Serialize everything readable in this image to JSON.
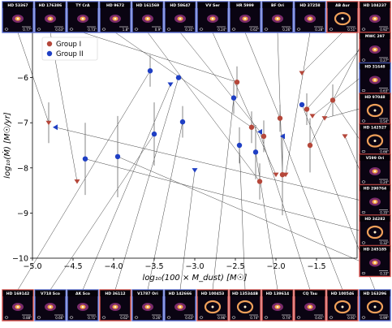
{
  "chart_data": {
    "type": "scatter",
    "xlabel": "log₁₀(100 × M_dust) [M☉]",
    "ylabel": "log₁₀(Ṁ) [M☉/yr]",
    "xlim": [
      -5.0,
      -1.0
    ],
    "ylim": [
      -10.0,
      -5.0
    ],
    "x_ticks": [
      -5.0,
      -4.5,
      -4.0,
      -3.5,
      -3.0,
      -2.5,
      -2.0,
      -1.5
    ],
    "x_tick_labels": [
      "−5.0",
      "−4.5",
      "−4.0",
      "−3.5",
      "−3.0",
      "−2.5",
      "−2.0",
      "−1.5"
    ],
    "y_ticks": [
      -6,
      -7,
      -8,
      -9,
      -10
    ],
    "y_tick_labels": [
      "−6",
      "−7",
      "−8",
      "−9",
      "−10"
    ],
    "legend_placement": "upper-left",
    "series": [
      {
        "name": "Group I",
        "color": "#b5473a",
        "points": [
          {
            "x": -4.8,
            "y": -7.0,
            "yerr": 0.45,
            "marker": "triangle-down"
          },
          {
            "x": -4.45,
            "y": -8.3,
            "yerr": 0,
            "marker": "triangle-down"
          },
          {
            "x": -2.48,
            "y": -6.1,
            "yerr": 0.35,
            "marker": "circle"
          },
          {
            "x": -2.3,
            "y": -7.1,
            "yerr": 0.35,
            "marker": "circle"
          },
          {
            "x": -2.2,
            "y": -8.3,
            "yerr": 0.4,
            "marker": "circle"
          },
          {
            "x": -2.15,
            "y": -7.3,
            "yerr": 0.35,
            "marker": "circle"
          },
          {
            "x": -2.0,
            "y": -8.15,
            "yerr": 0,
            "marker": "triangle-down"
          },
          {
            "x": -1.95,
            "y": -6.9,
            "yerr": 0.3,
            "marker": "circle"
          },
          {
            "x": -1.92,
            "y": -8.15,
            "yerr": 0.9,
            "marker": "circle"
          },
          {
            "x": -1.88,
            "y": -8.15,
            "yerr": 0,
            "marker": "triangle-down"
          },
          {
            "x": -1.68,
            "y": -5.9,
            "yerr": 0,
            "marker": "triangle-down"
          },
          {
            "x": -1.62,
            "y": -6.7,
            "yerr": 0.35,
            "marker": "circle"
          },
          {
            "x": -1.58,
            "y": -7.5,
            "yerr": 0.6,
            "marker": "circle"
          },
          {
            "x": -1.55,
            "y": -6.85,
            "yerr": 0,
            "marker": "triangle-down"
          },
          {
            "x": -1.4,
            "y": -6.9,
            "yerr": 0,
            "marker": "triangle-down"
          },
          {
            "x": -1.3,
            "y": -6.5,
            "yerr": 0.35,
            "marker": "circle"
          },
          {
            "x": -1.15,
            "y": -7.3,
            "yerr": 0,
            "marker": "triangle-down"
          }
        ]
      },
      {
        "name": "Group II",
        "color": "#1f3fc4",
        "points": [
          {
            "x": -4.72,
            "y": -7.1,
            "yerr": 0,
            "marker": "triangle-left"
          },
          {
            "x": -4.35,
            "y": -7.8,
            "yerr": 0.8,
            "marker": "circle"
          },
          {
            "x": -3.95,
            "y": -7.75,
            "yerr": 0.9,
            "marker": "circle"
          },
          {
            "x": -3.55,
            "y": -5.85,
            "yerr": 0.35,
            "marker": "circle"
          },
          {
            "x": -3.5,
            "y": -7.25,
            "yerr": 0.7,
            "marker": "circle"
          },
          {
            "x": -3.3,
            "y": -6.15,
            "yerr": 0,
            "marker": "triangle-down"
          },
          {
            "x": -3.2,
            "y": -6.0,
            "yerr": 0,
            "marker": "circle"
          },
          {
            "x": -3.15,
            "y": -6.98,
            "yerr": 0.35,
            "marker": "circle"
          },
          {
            "x": -3.0,
            "y": -8.05,
            "yerr": 0,
            "marker": "triangle-down"
          },
          {
            "x": -2.52,
            "y": -6.45,
            "yerr": 0.35,
            "marker": "circle"
          },
          {
            "x": -2.45,
            "y": -7.5,
            "yerr": 0.4,
            "marker": "circle"
          },
          {
            "x": -2.25,
            "y": -7.65,
            "yerr": 0.6,
            "marker": "circle"
          },
          {
            "x": -2.2,
            "y": -7.2,
            "yerr": 0,
            "marker": "triangle-left"
          },
          {
            "x": -1.92,
            "y": -7.3,
            "yerr": 0,
            "marker": "triangle-left"
          },
          {
            "x": -1.68,
            "y": -6.6,
            "yerr": 0,
            "marker": "circle"
          }
        ]
      }
    ],
    "thumbnails_top": [
      {
        "name": "HD 53367",
        "scale": "0.77\"",
        "border": "#5b6fd6",
        "anchor": 1
      },
      {
        "name": "HD 176386",
        "scale": "0.63\"",
        "border": "#5b6fd6",
        "anchor": 0
      },
      {
        "name": "TY CrA",
        "scale": "0.73\"",
        "border": "#5b6fd6",
        "anchor": 6
      },
      {
        "name": "HD 9672",
        "scale": "1.8\"",
        "border": "#5b6fd6",
        "anchor": 4
      },
      {
        "name": "HD 161569",
        "scale": "0.9\"",
        "border": "#5b6fd6",
        "anchor": 6
      },
      {
        "name": "HD 58647",
        "scale": "0.31\"",
        "border": "#5b6fd6",
        "anchor": 5
      },
      {
        "name": "VV Ser",
        "scale": "0.24\"",
        "border": "#5b6fd6",
        "anchor": 9
      },
      {
        "name": "HR 5999",
        "scale": "0.62\"",
        "border": "#5b6fd6",
        "anchor": 2
      },
      {
        "name": "BF Ori",
        "scale": "0.26\"",
        "border": "#5b6fd6",
        "anchor": 11
      },
      {
        "name": "HD 37258",
        "scale": "0.28\"",
        "border": "#5b6fd6",
        "anchor": 14
      },
      {
        "name": "AB Aur",
        "scale": "0.51\"",
        "border": "#d9534f",
        "anchor": 10
      },
      {
        "name": "HD 104237",
        "scale": "0.92\"",
        "border": "#d9534f",
        "anchor": 11
      }
    ],
    "thumbnails_right": [
      {
        "name": "MWC 297",
        "scale": "0.27\"",
        "border": "#d9534f"
      },
      {
        "name": "HD 31648",
        "scale": "0.63\"",
        "border": "#5b6fd6"
      },
      {
        "name": "HD 97048",
        "scale": "0.54\"",
        "border": "#d9534f"
      },
      {
        "name": "HD 142527",
        "scale": "0.66\"",
        "border": "#d9534f"
      },
      {
        "name": "V599 Ori",
        "scale": "0.24\"",
        "border": "#d9534f"
      },
      {
        "name": "HD 290764",
        "scale": "0.35\"",
        "border": "#d9534f"
      },
      {
        "name": "HD 34282",
        "scale": "0.32\"",
        "border": "#d9534f"
      },
      {
        "name": "HD 245185",
        "scale": "0.33\"",
        "border": "#d9534f"
      }
    ],
    "thumbnails_bottom": [
      {
        "name": "HD 169142",
        "scale": "0.88\"",
        "border": "#d9534f"
      },
      {
        "name": "V718 Sco",
        "scale": "0.66\"",
        "border": "#5b6fd6"
      },
      {
        "name": "AK Sco",
        "scale": "0.71\"",
        "border": "#5b6fd6"
      },
      {
        "name": "HD 36112",
        "scale": "0.62\"",
        "border": "#d9534f"
      },
      {
        "name": "V1787 Ori",
        "scale": "0.26\"",
        "border": "#5b6fd6"
      },
      {
        "name": "HD 142666",
        "scale": "0.63\"",
        "border": "#5b6fd6"
      },
      {
        "name": "HD 100453",
        "scale": "0.96\"",
        "border": "#d9534f"
      },
      {
        "name": "HD 135344B",
        "scale": "0.74\"",
        "border": "#d9534f"
      },
      {
        "name": "HD 139614",
        "scale": "0.74\"",
        "border": "#d9534f"
      },
      {
        "name": "CQ Tau",
        "scale": "0.61\"",
        "border": "#d9534f"
      },
      {
        "name": "HD 100546",
        "scale": "0.91\"",
        "border": "#d9534f"
      },
      {
        "name": "HD 163296",
        "scale": "0.99\"",
        "border": "#5b6fd6"
      }
    ]
  }
}
